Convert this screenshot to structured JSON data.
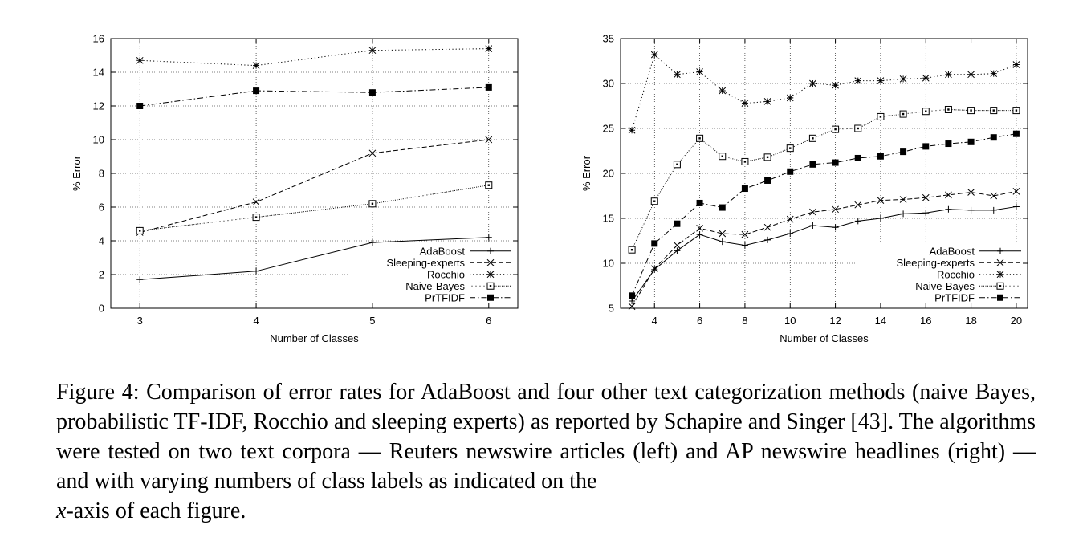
{
  "chart_data": [
    {
      "type": "line",
      "xlabel": "Number of Classes",
      "ylabel": "% Error",
      "xlim": [
        2.75,
        6.25
      ],
      "ylim": [
        0,
        16
      ],
      "xticks": [
        "3",
        "4",
        "5",
        "6"
      ],
      "yticks": [
        "0",
        "2",
        "4",
        "6",
        "8",
        "10",
        "12",
        "14",
        "16"
      ],
      "grid": true,
      "legend": "bottom-right",
      "x": [
        3,
        4,
        5,
        6
      ],
      "series": [
        {
          "name": "AdaBoost",
          "marker": "plus",
          "dash": "solid",
          "values": [
            1.7,
            2.2,
            3.9,
            4.2
          ]
        },
        {
          "name": "Sleeping-experts",
          "marker": "cross",
          "dash": "dashed",
          "values": [
            4.5,
            6.3,
            9.2,
            10.0
          ]
        },
        {
          "name": "Rocchio",
          "marker": "star",
          "dash": "dotted",
          "values": [
            14.7,
            14.4,
            15.3,
            15.4
          ]
        },
        {
          "name": "Naive-Bayes",
          "marker": "square-open",
          "dash": "finedot",
          "values": [
            4.6,
            5.4,
            6.2,
            7.3
          ]
        },
        {
          "name": "PrTFIDF",
          "marker": "square-filled",
          "dash": "dashdot",
          "values": [
            12.0,
            12.9,
            12.8,
            13.1
          ]
        }
      ]
    },
    {
      "type": "line",
      "xlabel": "Number of Classes",
      "ylabel": "% Error",
      "xlim": [
        2.5,
        20.5
      ],
      "ylim": [
        5,
        35
      ],
      "xticks": [
        "4",
        "6",
        "8",
        "10",
        "12",
        "14",
        "16",
        "18",
        "20"
      ],
      "yticks": [
        "5",
        "10",
        "15",
        "20",
        "25",
        "30",
        "35"
      ],
      "grid": true,
      "legend": "bottom-right",
      "x": [
        3,
        4,
        5,
        6,
        7,
        8,
        9,
        10,
        11,
        12,
        13,
        14,
        15,
        16,
        17,
        18,
        19,
        20
      ],
      "series": [
        {
          "name": "AdaBoost",
          "marker": "plus",
          "dash": "solid",
          "values": [
            5.8,
            9.3,
            11.4,
            13.2,
            12.4,
            12.0,
            12.6,
            13.3,
            14.2,
            14.0,
            14.7,
            15.0,
            15.5,
            15.6,
            16.0,
            15.9,
            15.9,
            16.3
          ]
        },
        {
          "name": "Sleeping-experts",
          "marker": "cross",
          "dash": "dashed",
          "values": [
            5.2,
            9.4,
            12.0,
            13.9,
            13.3,
            13.2,
            14.0,
            14.9,
            15.7,
            16.0,
            16.5,
            17.0,
            17.1,
            17.3,
            17.6,
            17.9,
            17.5,
            18.0
          ]
        },
        {
          "name": "Rocchio",
          "marker": "star",
          "dash": "dotted",
          "values": [
            24.8,
            33.2,
            31.0,
            31.3,
            29.2,
            27.8,
            28.0,
            28.4,
            30.0,
            29.8,
            30.3,
            30.3,
            30.5,
            30.6,
            31.0,
            31.0,
            31.1,
            32.1
          ]
        },
        {
          "name": "Naive-Bayes",
          "marker": "square-open",
          "dash": "finedot",
          "values": [
            11.5,
            16.9,
            21.0,
            23.9,
            21.9,
            21.3,
            21.8,
            22.8,
            23.9,
            24.9,
            25.0,
            26.3,
            26.6,
            26.9,
            27.1,
            27.0,
            27.0,
            27.0
          ]
        },
        {
          "name": "PrTFIDF",
          "marker": "square-filled",
          "dash": "dashdot",
          "values": [
            6.4,
            12.2,
            14.4,
            16.7,
            16.2,
            18.3,
            19.2,
            20.2,
            21.0,
            21.2,
            21.7,
            21.9,
            22.4,
            23.0,
            23.3,
            23.5,
            24.0,
            24.4
          ]
        }
      ]
    }
  ],
  "caption": {
    "lines": [
      "Figure 4: Comparison of error rates for AdaBoost and four other text categorization methods",
      "(naive Bayes, probabilistic TF-IDF, Rocchio and sleeping experts) as reported by Schapire and",
      "Singer [43]. The algorithms were tested on two text corpora — Reuters newswire articles (left)",
      "and AP newswire headlines (right) — and with varying numbers of class labels as indicated on the"
    ],
    "last_line_var": "x",
    "last_line_rest": "-axis of each figure."
  }
}
